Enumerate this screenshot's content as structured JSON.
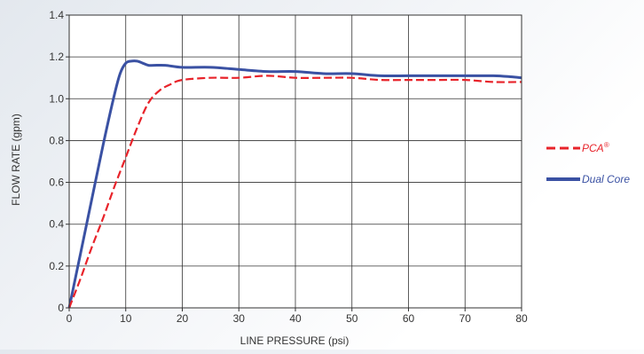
{
  "chart_data": {
    "type": "line",
    "title": "",
    "xlabel": "LINE PRESSURE (psi)",
    "ylabel": "FLOW RATE (gpm)",
    "xlim": [
      0,
      80
    ],
    "ylim": [
      0,
      1.4
    ],
    "x_ticks": [
      "0",
      "10",
      "20",
      "30",
      "40",
      "50",
      "60",
      "70",
      "80"
    ],
    "y_ticks": [
      "0",
      "0.2",
      "0.4",
      "0.6",
      "0.8",
      "1.0",
      "1.2",
      "1.4"
    ],
    "grid": true,
    "legend_position": "right",
    "series": [
      {
        "name": "PCA",
        "superscript": "®",
        "color": "#e8232a",
        "style": "dashed",
        "x": [
          0,
          2,
          4,
          6,
          8,
          10,
          12,
          14,
          16,
          18,
          20,
          25,
          30,
          35,
          40,
          45,
          50,
          55,
          60,
          65,
          70,
          75,
          80
        ],
        "y": [
          0,
          0.14,
          0.29,
          0.43,
          0.58,
          0.72,
          0.86,
          0.98,
          1.04,
          1.07,
          1.09,
          1.1,
          1.1,
          1.11,
          1.1,
          1.1,
          1.1,
          1.09,
          1.09,
          1.09,
          1.09,
          1.08,
          1.08
        ]
      },
      {
        "name": "Dual Core",
        "superscript": "",
        "color": "#3a51a3",
        "style": "solid",
        "x": [
          0,
          2,
          4,
          6,
          8,
          9,
          10,
          11,
          12,
          13,
          14,
          15,
          17,
          20,
          25,
          30,
          35,
          40,
          45,
          50,
          55,
          60,
          65,
          70,
          75,
          78,
          80
        ],
        "y": [
          0,
          0.26,
          0.52,
          0.78,
          1.02,
          1.12,
          1.17,
          1.18,
          1.18,
          1.17,
          1.16,
          1.16,
          1.16,
          1.15,
          1.15,
          1.14,
          1.13,
          1.13,
          1.12,
          1.12,
          1.11,
          1.11,
          1.11,
          1.11,
          1.11,
          1.105,
          1.1
        ]
      }
    ]
  }
}
